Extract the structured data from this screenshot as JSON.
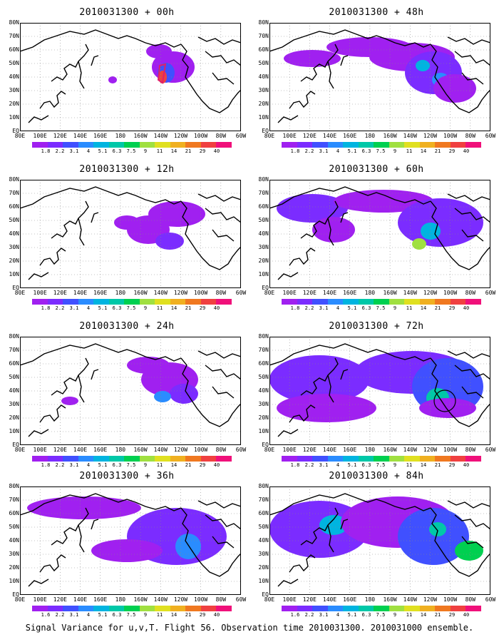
{
  "panels": [
    {
      "title": "2010031300 + 00h"
    },
    {
      "title": "2010031300 + 48h"
    },
    {
      "title": "2010031300 + 12h"
    },
    {
      "title": "2010031300 + 60h"
    },
    {
      "title": "2010031300 + 24h"
    },
    {
      "title": "2010031300 + 72h"
    },
    {
      "title": "2010031300 + 36h"
    },
    {
      "title": "2010031300 + 84h"
    }
  ],
  "lat_labels": [
    "80N",
    "70N",
    "60N",
    "50N",
    "40N",
    "30N",
    "20N",
    "10N",
    "EQ"
  ],
  "lon_labels": [
    "80E",
    "100E",
    "120E",
    "140E",
    "160E",
    "180",
    "160W",
    "140W",
    "120W",
    "100W",
    "80W",
    "60W"
  ],
  "colorbar": {
    "labels": [
      "1.8",
      "2.2",
      "3.1",
      "4",
      "5.1",
      "6.3",
      "7.5",
      "9",
      "11",
      "14",
      "21",
      "29",
      "40"
    ],
    "labels_last_panel": [
      "1.6",
      "2.2",
      "3.1",
      "4",
      "5.1",
      "6.3",
      "7.5",
      "9",
      "11",
      "14",
      "21",
      "29",
      "40"
    ],
    "colors": [
      "#a020f0",
      "#7b2cff",
      "#4050ff",
      "#2a8cff",
      "#00b4e0",
      "#00c8a8",
      "#00d050",
      "#a0e040",
      "#e0e020",
      "#f0b020",
      "#f07820",
      "#f04040",
      "#f0107a"
    ]
  },
  "footer": "Signal Variance for u,v,T. Flight 56. Observation time 2010031300. 2010031000 ensemble."
}
